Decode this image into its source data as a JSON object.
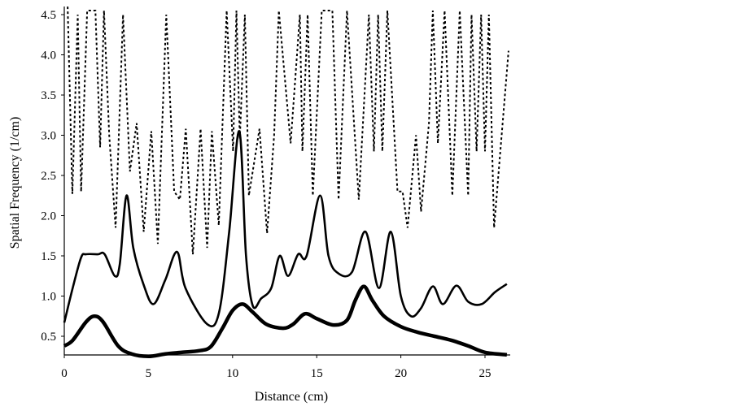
{
  "chart_data": {
    "type": "line",
    "title": "",
    "xlabel": "Distance (cm)",
    "ylabel": "Spatial Frequency (1/cm)",
    "xlim": [
      0,
      26.5
    ],
    "ylim": [
      0.27,
      4.6
    ],
    "xticks": [
      0,
      5,
      10,
      15,
      20,
      25
    ],
    "xtick_labels": [
      "0",
      "5",
      "10",
      "15",
      "20",
      "25"
    ],
    "yticks": [
      0.5,
      1.0,
      1.5,
      2.0,
      2.5,
      3.0,
      3.5,
      4.0,
      4.5
    ],
    "ytick_labels": [
      "0.5",
      "1.0",
      "1.5",
      "2.0",
      "2.5",
      "3.0",
      "3.5",
      "4.0",
      "4.5"
    ],
    "grid": false,
    "legend": "none",
    "series": [
      {
        "name": "dotted",
        "style": "dotted",
        "points": [
          [
            0.2,
            4.6
          ],
          [
            0.48,
            2.27
          ],
          [
            0.8,
            4.5
          ],
          [
            1.0,
            2.3
          ],
          [
            1.36,
            4.55
          ],
          [
            1.85,
            4.55
          ],
          [
            2.13,
            2.85
          ],
          [
            2.36,
            4.55
          ],
          [
            2.67,
            3.0
          ],
          [
            3.05,
            1.85
          ],
          [
            3.49,
            4.5
          ],
          [
            3.9,
            2.55
          ],
          [
            4.3,
            3.15
          ],
          [
            4.72,
            1.8
          ],
          [
            5.17,
            3.05
          ],
          [
            5.56,
            1.65
          ],
          [
            6.06,
            4.5
          ],
          [
            6.53,
            2.3
          ],
          [
            6.87,
            2.2
          ],
          [
            7.22,
            3.08
          ],
          [
            7.64,
            1.52
          ],
          [
            8.1,
            3.08
          ],
          [
            8.49,
            1.6
          ],
          [
            8.77,
            3.05
          ],
          [
            9.18,
            1.88
          ],
          [
            9.65,
            4.55
          ],
          [
            10.03,
            2.8
          ],
          [
            10.23,
            4.55
          ],
          [
            10.43,
            2.95
          ],
          [
            10.73,
            4.5
          ],
          [
            10.97,
            2.25
          ],
          [
            11.6,
            3.08
          ],
          [
            12.05,
            1.78
          ],
          [
            12.47,
            3.0
          ],
          [
            12.75,
            4.55
          ],
          [
            13.45,
            2.9
          ],
          [
            14.0,
            4.5
          ],
          [
            14.15,
            2.8
          ],
          [
            14.46,
            4.5
          ],
          [
            14.77,
            2.25
          ],
          [
            15.3,
            4.55
          ],
          [
            15.93,
            4.55
          ],
          [
            16.3,
            2.2
          ],
          [
            16.8,
            4.55
          ],
          [
            17.5,
            2.2
          ],
          [
            18.1,
            4.5
          ],
          [
            18.4,
            2.8
          ],
          [
            18.65,
            4.5
          ],
          [
            18.9,
            2.8
          ],
          [
            19.2,
            4.55
          ],
          [
            19.8,
            2.3
          ],
          [
            20.1,
            2.3
          ],
          [
            20.4,
            1.85
          ],
          [
            20.9,
            3.0
          ],
          [
            21.2,
            2.05
          ],
          [
            21.67,
            3.15
          ],
          [
            21.9,
            4.55
          ],
          [
            22.2,
            2.9
          ],
          [
            22.6,
            4.55
          ],
          [
            23.06,
            2.25
          ],
          [
            23.5,
            4.55
          ],
          [
            24.0,
            2.25
          ],
          [
            24.2,
            4.5
          ],
          [
            24.5,
            2.8
          ],
          [
            24.77,
            4.5
          ],
          [
            25.0,
            2.8
          ],
          [
            25.23,
            4.5
          ],
          [
            25.54,
            1.85
          ],
          [
            26.4,
            4.05
          ]
        ]
      },
      {
        "name": "thin-solid",
        "style": "solid",
        "points": [
          [
            0,
            0.67
          ],
          [
            0.5,
            1.1
          ],
          [
            1.0,
            1.48
          ],
          [
            1.3,
            1.52
          ],
          [
            2.0,
            1.52
          ],
          [
            2.4,
            1.52
          ],
          [
            3.0,
            1.25
          ],
          [
            3.3,
            1.4
          ],
          [
            3.7,
            2.25
          ],
          [
            4.1,
            1.6
          ],
          [
            4.7,
            1.15
          ],
          [
            5.3,
            0.9
          ],
          [
            6.0,
            1.2
          ],
          [
            6.7,
            1.55
          ],
          [
            7.2,
            1.1
          ],
          [
            8.5,
            0.65
          ],
          [
            9.2,
            0.8
          ],
          [
            9.8,
            1.8
          ],
          [
            10.4,
            3.05
          ],
          [
            10.8,
            1.5
          ],
          [
            11.2,
            0.88
          ],
          [
            11.7,
            0.97
          ],
          [
            12.3,
            1.1
          ],
          [
            12.8,
            1.5
          ],
          [
            13.3,
            1.25
          ],
          [
            13.9,
            1.52
          ],
          [
            14.4,
            1.5
          ],
          [
            15.2,
            2.25
          ],
          [
            15.7,
            1.5
          ],
          [
            16.3,
            1.28
          ],
          [
            17.1,
            1.3
          ],
          [
            17.9,
            1.8
          ],
          [
            18.7,
            1.1
          ],
          [
            19.4,
            1.8
          ],
          [
            20.0,
            1.0
          ],
          [
            20.6,
            0.75
          ],
          [
            21.2,
            0.85
          ],
          [
            21.9,
            1.12
          ],
          [
            22.5,
            0.9
          ],
          [
            23.3,
            1.13
          ],
          [
            24.0,
            0.93
          ],
          [
            24.8,
            0.9
          ],
          [
            25.6,
            1.05
          ],
          [
            26.3,
            1.15
          ]
        ]
      },
      {
        "name": "thick-solid",
        "style": "solid-thick",
        "points": [
          [
            0,
            0.38
          ],
          [
            0.5,
            0.45
          ],
          [
            1.3,
            0.68
          ],
          [
            1.8,
            0.75
          ],
          [
            2.3,
            0.68
          ],
          [
            3.2,
            0.38
          ],
          [
            4.0,
            0.28
          ],
          [
            5.0,
            0.25
          ],
          [
            6.0,
            0.28
          ],
          [
            7.0,
            0.3
          ],
          [
            8.0,
            0.32
          ],
          [
            8.7,
            0.37
          ],
          [
            9.4,
            0.6
          ],
          [
            10.0,
            0.82
          ],
          [
            10.6,
            0.9
          ],
          [
            11.2,
            0.8
          ],
          [
            12.0,
            0.65
          ],
          [
            13.0,
            0.6
          ],
          [
            13.6,
            0.65
          ],
          [
            14.3,
            0.78
          ],
          [
            15.0,
            0.72
          ],
          [
            16.0,
            0.64
          ],
          [
            16.8,
            0.7
          ],
          [
            17.3,
            0.95
          ],
          [
            17.8,
            1.12
          ],
          [
            18.3,
            0.95
          ],
          [
            19.0,
            0.75
          ],
          [
            20.0,
            0.62
          ],
          [
            21.0,
            0.55
          ],
          [
            22.0,
            0.5
          ],
          [
            23.0,
            0.45
          ],
          [
            24.0,
            0.38
          ],
          [
            25.0,
            0.3
          ],
          [
            26.3,
            0.27
          ]
        ]
      }
    ]
  }
}
